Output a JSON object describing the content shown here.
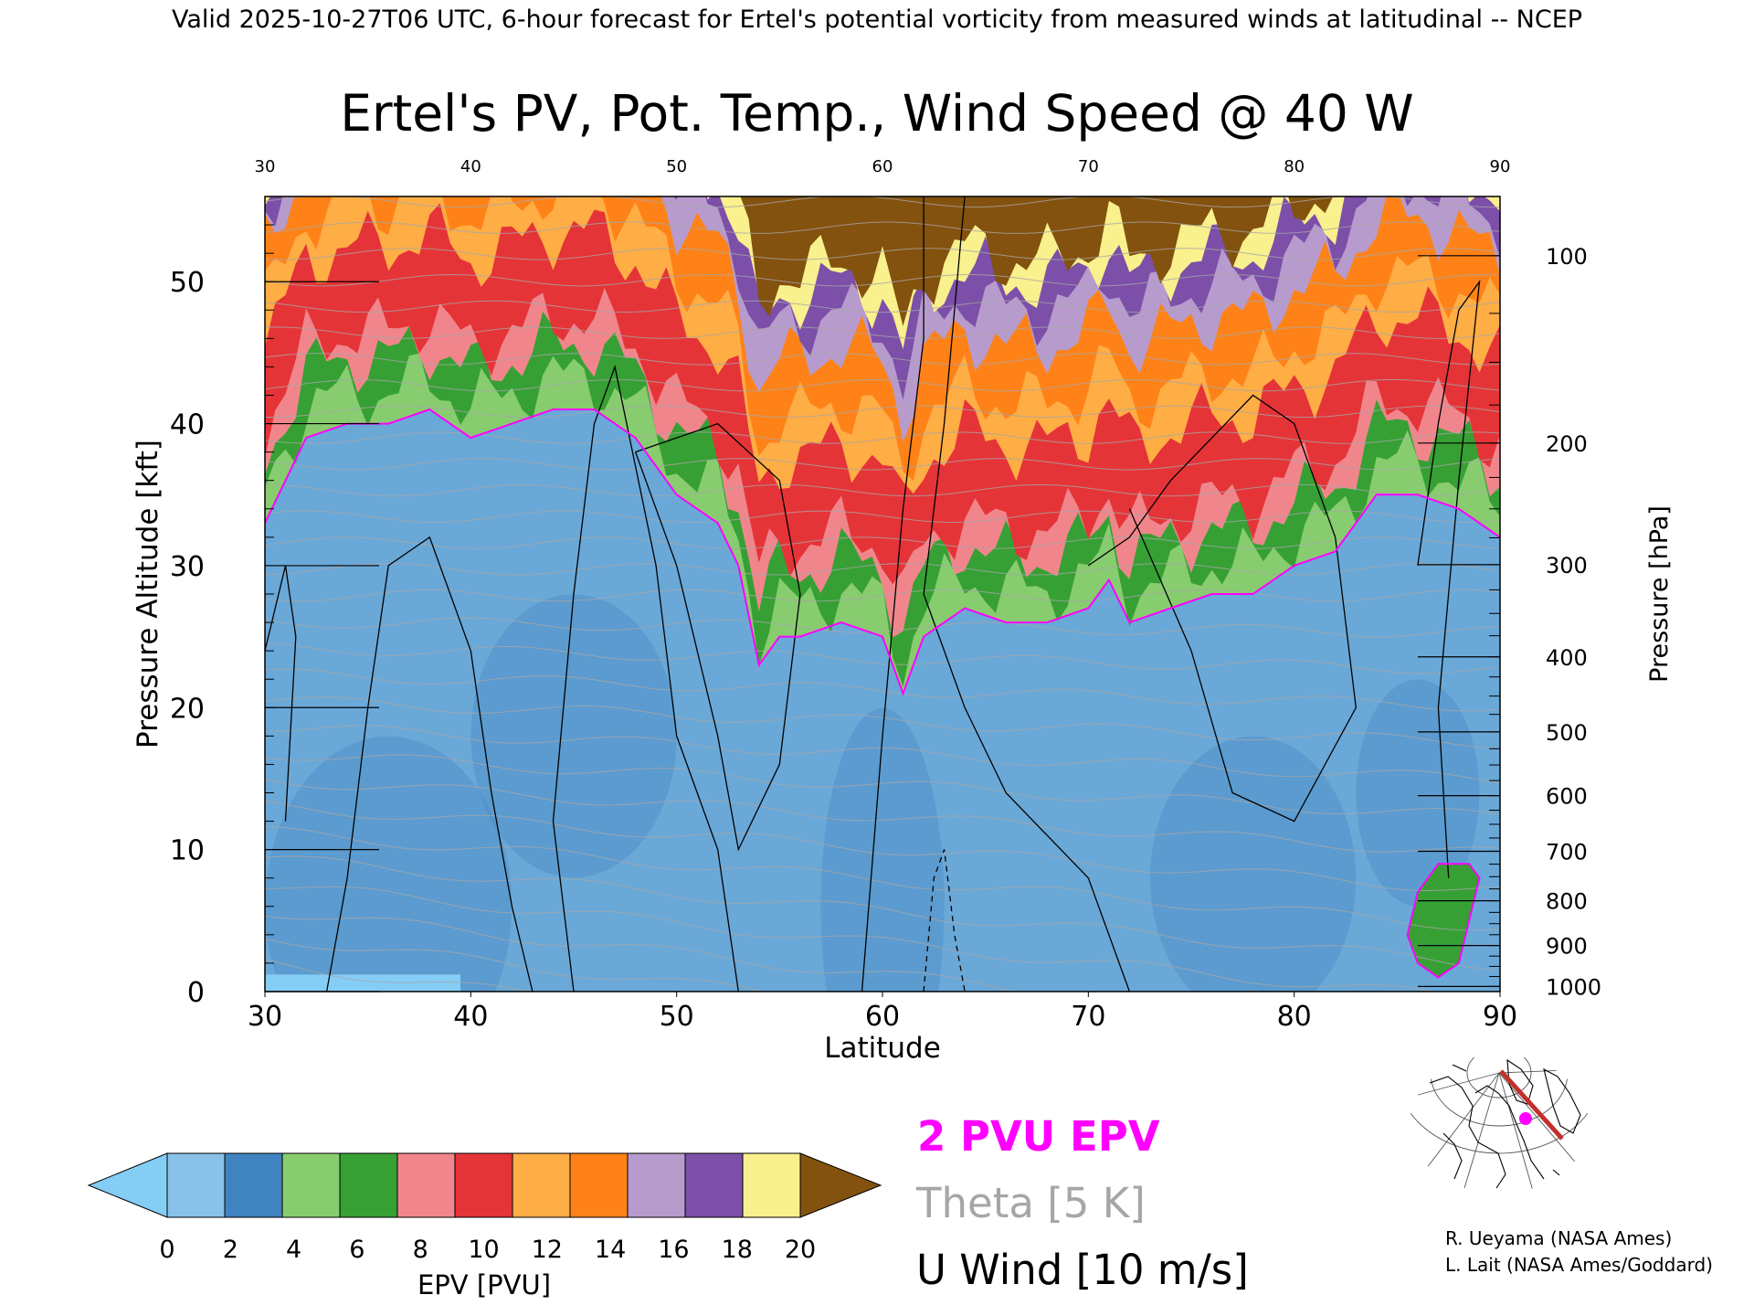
{
  "header": "Valid 2025-10-27T06 UTC, 6-hour forecast for Ertel's potential vorticity from measured winds at latitudinal -- NCEP",
  "title": "Ertel's PV, Pot. Temp., Wind Speed @ 40 W",
  "credits": [
    "R. Ueyama (NASA Ames)",
    "L. Lait (NASA Ames/Goddard)"
  ],
  "legend_text": {
    "epv": "2 PVU EPV",
    "theta": "Theta [5 K]",
    "wind": "U Wind [10 m/s]"
  },
  "colors": {
    "epv_line": "#ff00ff",
    "theta_line": "#a6a6a6",
    "wind_line": "#000000",
    "map_track": "#c0302a",
    "map_marker": "#ff00ff"
  },
  "chart_data": {
    "type": "heatmap",
    "xlabel": "Latitude",
    "ylabel": "Pressure Altitude [kft]",
    "ylabel_right": "Pressure [hPa]",
    "xlim": [
      30,
      90
    ],
    "ylim": [
      0,
      56
    ],
    "x_ticks": [
      30,
      40,
      50,
      60,
      70,
      80,
      90
    ],
    "y_ticks": [
      0,
      10,
      20,
      30,
      40,
      50
    ],
    "pressure_ticks": [
      100,
      200,
      300,
      400,
      500,
      600,
      700,
      800,
      900,
      1000
    ],
    "tropopause_2pvu_kft": {
      "lat": [
        30,
        32,
        34,
        36,
        38,
        40,
        42,
        44,
        46,
        48,
        50,
        52,
        53,
        54,
        55,
        56,
        58,
        60,
        61,
        62,
        63,
        64,
        66,
        68,
        70,
        71,
        72,
        74,
        76,
        78,
        80,
        82,
        84,
        86,
        88,
        90
      ],
      "kft": [
        33,
        39,
        40,
        40,
        41,
        39,
        40,
        41,
        41,
        39,
        35,
        33,
        30,
        23,
        25,
        25,
        26,
        25,
        21,
        25,
        26,
        27,
        26,
        26,
        27,
        29,
        26,
        27,
        28,
        28,
        30,
        31,
        35,
        35,
        34,
        32
      ]
    },
    "lower_2pvu_region_kft": {
      "lat": [
        86,
        87,
        88,
        88.5,
        89,
        88.5,
        87,
        86,
        85.5,
        86
      ],
      "kft": [
        2,
        1,
        2,
        5,
        8,
        9,
        9,
        7,
        4,
        2
      ]
    },
    "colorbar": {
      "label": "EPV [PVU]",
      "ticks": [
        0,
        2,
        4,
        6,
        8,
        10,
        12,
        14,
        16,
        18,
        20
      ],
      "colors": [
        "#89c2e8",
        "#3f83c1",
        "#88cc70",
        "#37a034",
        "#f0868c",
        "#e53438",
        "#ffad45",
        "#ff8218",
        "#b79bcd",
        "#7c4fa8",
        "#f9f08e"
      ],
      "under_color": "#84cdf5",
      "over_color": "#83520e"
    }
  }
}
